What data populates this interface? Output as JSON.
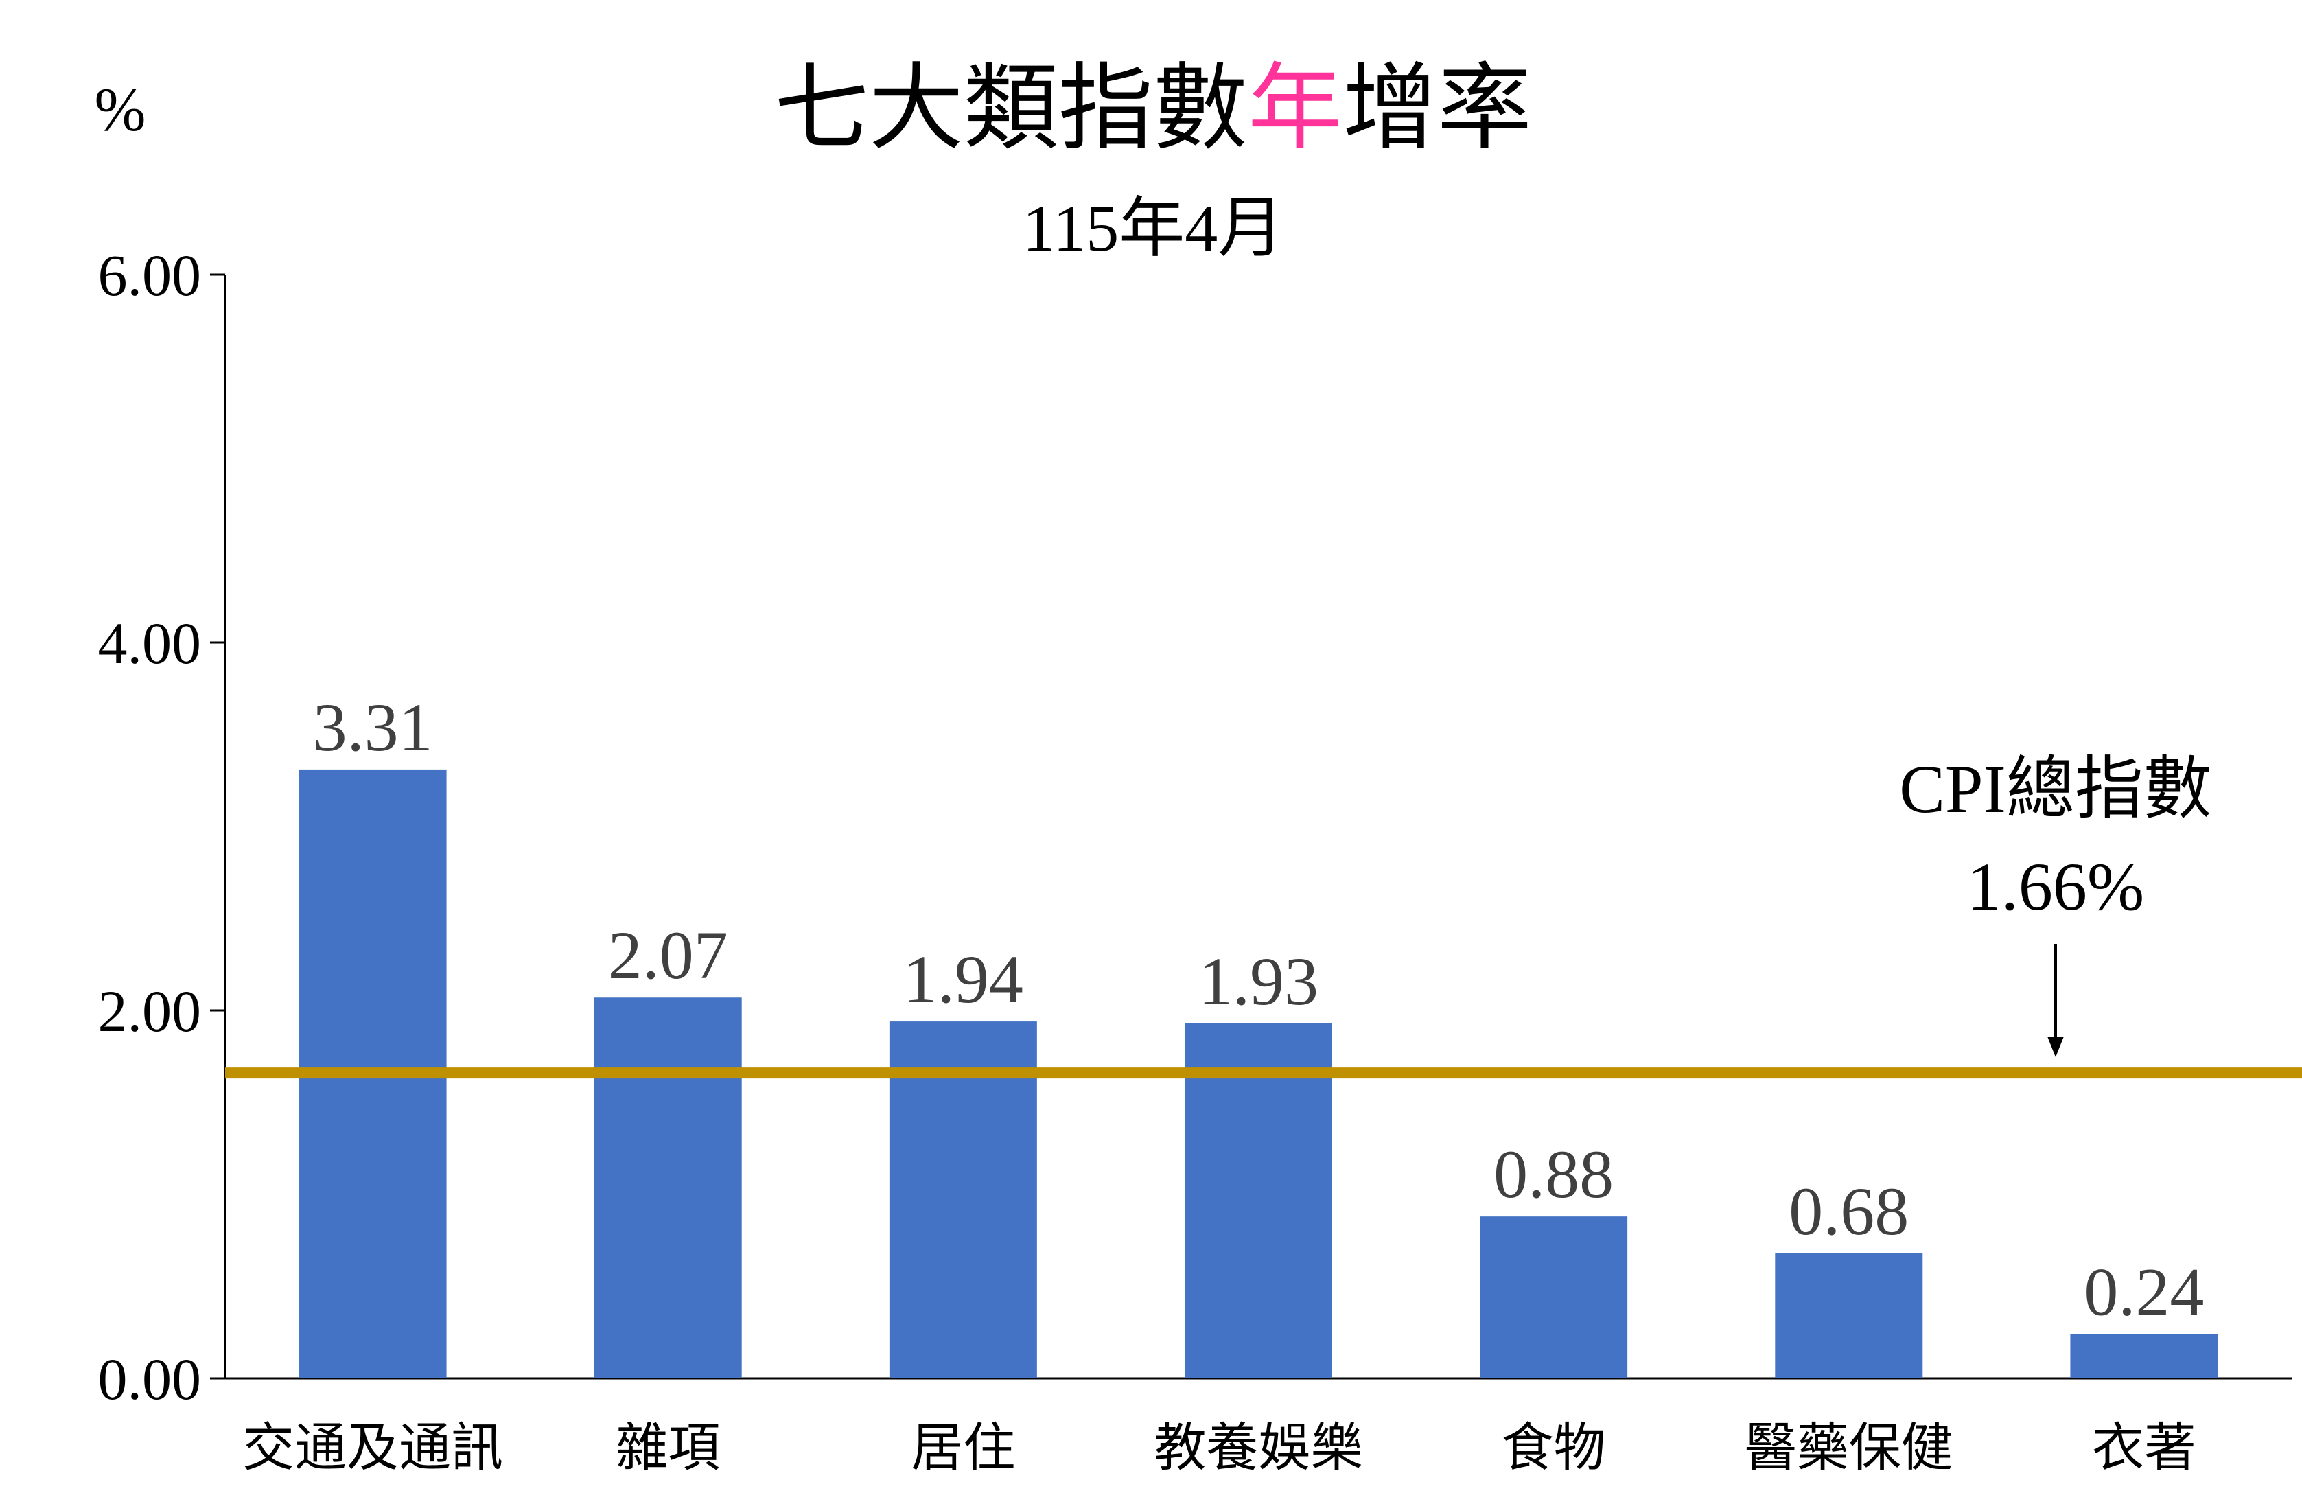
{
  "chart_data": {
    "type": "bar",
    "title_parts": [
      "七大類指數",
      "年",
      "增率"
    ],
    "subtitle": "115年4月",
    "ylabel": "%",
    "ylim": [
      0,
      6
    ],
    "y_ticks": [
      "0.00",
      "2.00",
      "4.00",
      "6.00"
    ],
    "y_tick_values": [
      0,
      2,
      4,
      6
    ],
    "categories": [
      "交通及通訊",
      "雜項",
      "居住",
      "教養娛樂",
      "食物",
      "醫藥保健",
      "衣著"
    ],
    "values": [
      3.31,
      2.07,
      1.94,
      1.93,
      0.88,
      0.68,
      0.24
    ],
    "value_labels": [
      "3.31",
      "2.07",
      "1.94",
      "1.93",
      "0.88",
      "0.68",
      "0.24"
    ],
    "reference_line": {
      "value": 1.66,
      "label_line1": "CPI總指數",
      "label_line2": "1.66%"
    },
    "grid": false,
    "colors": {
      "bar": "#4472C4",
      "reference_line": "#BF9000",
      "title_highlight": "#FF3399",
      "text": "#000000",
      "value_label": "#404040"
    }
  }
}
